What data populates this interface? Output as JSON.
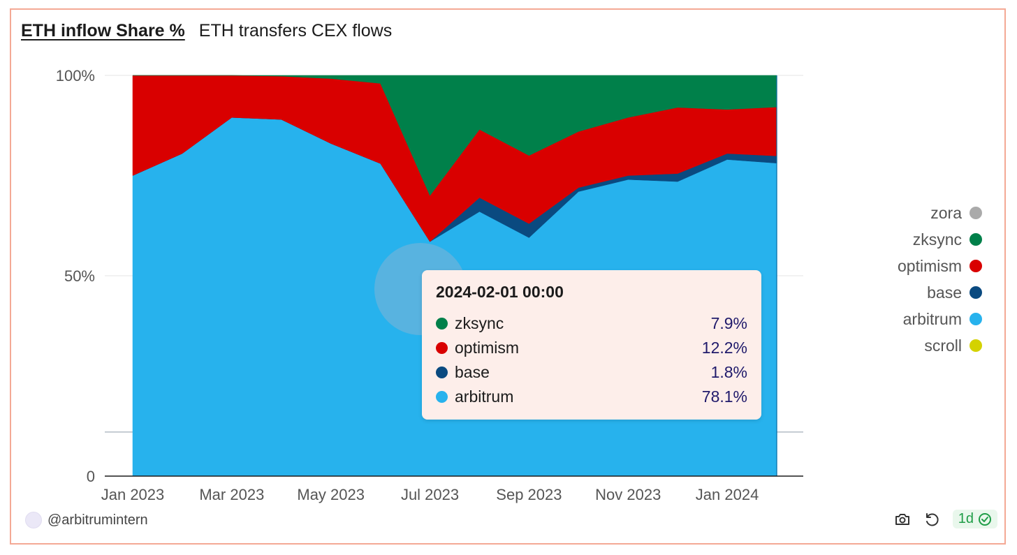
{
  "header": {
    "title": "ETH inflow Share %",
    "subtitle": "ETH transfers CEX flows"
  },
  "colors": {
    "zora": "#aaaaaa",
    "zksync": "#00804a",
    "optimism": "#d90000",
    "base": "#0a4a80",
    "arbitrum": "#27b2ed",
    "scroll": "#d4d200",
    "frame": "#f4a995"
  },
  "chart_data": {
    "type": "area",
    "stacked": true,
    "title": "ETH inflow Share %",
    "xlabel": "",
    "ylabel": "",
    "ylim": [
      0,
      100
    ],
    "y_ticks": [
      "0",
      "50%",
      "100%"
    ],
    "x_ticks": [
      "Jan 2023",
      "Mar 2023",
      "May 2023",
      "Jul 2023",
      "Sep 2023",
      "Nov 2023",
      "Jan 2024"
    ],
    "categories": [
      "2023-01",
      "2023-02",
      "2023-03",
      "2023-04",
      "2023-05",
      "2023-06",
      "2023-07",
      "2023-08",
      "2023-09",
      "2023-10",
      "2023-11",
      "2023-12",
      "2024-01",
      "2024-02"
    ],
    "series": [
      {
        "name": "arbitrum",
        "values": [
          75,
          80.5,
          89.5,
          89,
          83,
          78,
          58.5,
          66,
          59.5,
          71,
          74,
          73.5,
          79,
          78.1
        ]
      },
      {
        "name": "base",
        "values": [
          0,
          0,
          0,
          0,
          0,
          0,
          0,
          3.5,
          3.5,
          1,
          1,
          2,
          1.5,
          1.8
        ]
      },
      {
        "name": "optimism",
        "values": [
          25,
          19.5,
          10.5,
          10.8,
          16.2,
          20,
          11.5,
          17,
          17,
          14,
          14.5,
          16.5,
          11,
          12.2
        ]
      },
      {
        "name": "zksync",
        "values": [
          0,
          0,
          0,
          0.2,
          0.8,
          2,
          30,
          13.5,
          20,
          14,
          10.5,
          8,
          8.5,
          7.9
        ]
      },
      {
        "name": "zora",
        "values": [
          0,
          0,
          0,
          0,
          0,
          0,
          0,
          0,
          0,
          0,
          0,
          0,
          0,
          0
        ]
      },
      {
        "name": "scroll",
        "values": [
          0,
          0,
          0,
          0,
          0,
          0,
          0,
          0,
          0,
          0,
          0,
          0,
          0,
          0
        ]
      }
    ],
    "legend": [
      "zora",
      "zksync",
      "optimism",
      "base",
      "arbitrum",
      "scroll"
    ]
  },
  "tooltip": {
    "date": "2024-02-01 00:00",
    "rows": [
      {
        "name": "zksync",
        "value": "7.9%"
      },
      {
        "name": "optimism",
        "value": "12.2%"
      },
      {
        "name": "base",
        "value": "1.8%"
      },
      {
        "name": "arbitrum",
        "value": "78.1%"
      }
    ]
  },
  "footer": {
    "author": "@arbitrumintern",
    "freshness": "1d"
  }
}
